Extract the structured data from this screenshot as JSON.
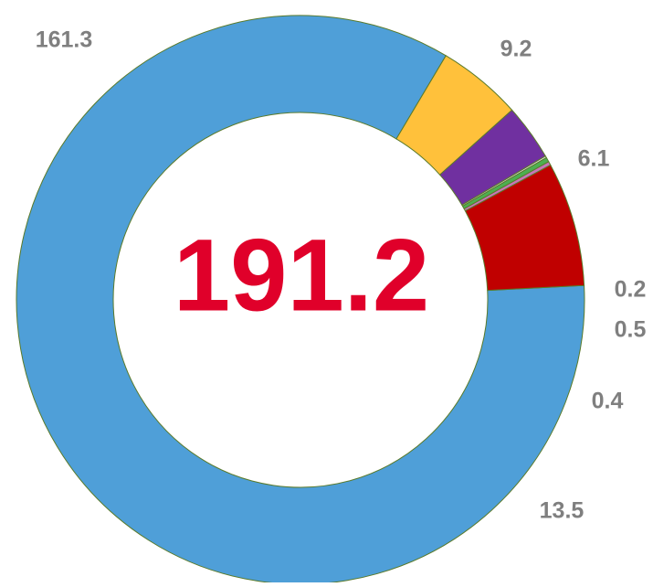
{
  "chart_data": {
    "type": "donut",
    "center_label": "191.2",
    "values": [
      161.3,
      9.2,
      6.1,
      0.2,
      0.5,
      0.4,
      13.5
    ],
    "colors": [
      "#4f9fd8",
      "#ffc13b",
      "#7030a0",
      "#e0e0e0",
      "#4caf50",
      "#c875b8",
      "#c00000"
    ]
  }
}
